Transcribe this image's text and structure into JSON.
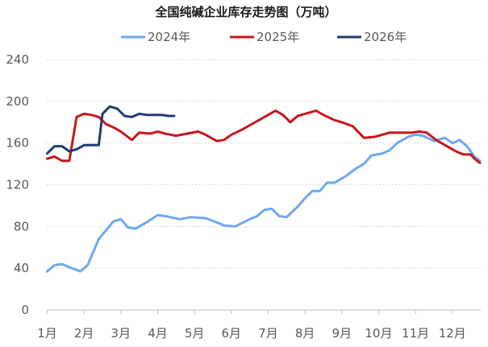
{
  "chart_data": {
    "type": "line",
    "title": "全国纯碱企业库存走势图（万吨）",
    "xlabel": "",
    "ylabel": "",
    "ylim": [
      0,
      240
    ],
    "yticks": [
      0,
      40,
      80,
      120,
      160,
      200,
      240
    ],
    "x_labels": [
      "1月",
      "2月",
      "3月",
      "4月",
      "5月",
      "6月",
      "7月",
      "8月",
      "9月",
      "10月",
      "11月",
      "12月"
    ],
    "x_range": [
      1,
      12.75
    ],
    "grid": "horizontal",
    "legend_position": "top",
    "series": [
      {
        "name": "2024年",
        "color": "#6fa8f0",
        "points": [
          [
            1.0,
            37
          ],
          [
            1.2,
            43
          ],
          [
            1.4,
            44
          ],
          [
            1.6,
            41
          ],
          [
            1.9,
            37
          ],
          [
            2.1,
            43
          ],
          [
            2.4,
            68
          ],
          [
            2.8,
            85
          ],
          [
            3.0,
            87
          ],
          [
            3.2,
            79
          ],
          [
            3.4,
            78
          ],
          [
            3.7,
            84
          ],
          [
            4.0,
            91
          ],
          [
            4.2,
            90
          ],
          [
            4.6,
            87
          ],
          [
            4.9,
            89
          ],
          [
            5.3,
            88
          ],
          [
            5.6,
            84
          ],
          [
            5.8,
            81
          ],
          [
            6.1,
            80
          ],
          [
            6.5,
            87
          ],
          [
            6.7,
            90
          ],
          [
            6.9,
            96
          ],
          [
            7.1,
            97
          ],
          [
            7.3,
            90
          ],
          [
            7.5,
            89
          ],
          [
            7.8,
            99
          ],
          [
            8.0,
            107
          ],
          [
            8.2,
            114
          ],
          [
            8.4,
            114
          ],
          [
            8.6,
            122
          ],
          [
            8.8,
            122
          ],
          [
            9.1,
            128
          ],
          [
            9.4,
            136
          ],
          [
            9.6,
            140
          ],
          [
            9.8,
            148
          ],
          [
            10.1,
            150
          ],
          [
            10.3,
            153
          ],
          [
            10.5,
            160
          ],
          [
            10.8,
            166
          ],
          [
            11.0,
            168
          ],
          [
            11.2,
            167
          ],
          [
            11.5,
            162
          ],
          [
            11.8,
            165
          ],
          [
            12.0,
            160
          ],
          [
            12.2,
            163
          ],
          [
            12.4,
            157
          ],
          [
            12.6,
            147
          ],
          [
            12.75,
            143
          ]
        ]
      },
      {
        "name": "2025年",
        "color": "#c8171a",
        "points": [
          [
            1.0,
            145
          ],
          [
            1.2,
            147
          ],
          [
            1.4,
            143
          ],
          [
            1.6,
            143
          ],
          [
            1.8,
            185
          ],
          [
            2.0,
            188
          ],
          [
            2.2,
            187
          ],
          [
            2.4,
            185
          ],
          [
            2.6,
            178
          ],
          [
            2.8,
            175
          ],
          [
            3.0,
            171
          ],
          [
            3.3,
            163
          ],
          [
            3.5,
            170
          ],
          [
            3.8,
            169
          ],
          [
            4.0,
            171
          ],
          [
            4.2,
            169
          ],
          [
            4.5,
            167
          ],
          [
            4.8,
            169
          ],
          [
            5.1,
            171
          ],
          [
            5.3,
            168
          ],
          [
            5.6,
            162
          ],
          [
            5.8,
            163
          ],
          [
            6.0,
            168
          ],
          [
            6.3,
            173
          ],
          [
            6.6,
            179
          ],
          [
            6.8,
            183
          ],
          [
            7.0,
            187
          ],
          [
            7.2,
            191
          ],
          [
            7.4,
            187
          ],
          [
            7.6,
            180
          ],
          [
            7.8,
            186
          ],
          [
            8.0,
            188
          ],
          [
            8.3,
            191
          ],
          [
            8.5,
            187
          ],
          [
            8.8,
            182
          ],
          [
            9.0,
            180
          ],
          [
            9.3,
            176
          ],
          [
            9.6,
            165
          ],
          [
            9.9,
            166
          ],
          [
            10.1,
            168
          ],
          [
            10.3,
            170
          ],
          [
            10.6,
            170
          ],
          [
            10.9,
            170
          ],
          [
            11.1,
            171
          ],
          [
            11.3,
            170
          ],
          [
            11.6,
            162
          ],
          [
            11.9,
            156
          ],
          [
            12.1,
            152
          ],
          [
            12.3,
            149
          ],
          [
            12.5,
            149
          ],
          [
            12.6,
            145
          ],
          [
            12.75,
            141
          ]
        ]
      },
      {
        "name": "2026年",
        "color": "#1f3b78",
        "points": [
          [
            1.0,
            150
          ],
          [
            1.2,
            157
          ],
          [
            1.4,
            157
          ],
          [
            1.6,
            152
          ],
          [
            1.8,
            154
          ],
          [
            2.0,
            158
          ],
          [
            2.2,
            158
          ],
          [
            2.4,
            158
          ],
          [
            2.5,
            188
          ],
          [
            2.7,
            195
          ],
          [
            2.9,
            193
          ],
          [
            3.1,
            186
          ],
          [
            3.3,
            185
          ],
          [
            3.5,
            188
          ],
          [
            3.7,
            187
          ],
          [
            3.9,
            187
          ],
          [
            4.1,
            187
          ],
          [
            4.3,
            186
          ],
          [
            4.45,
            186
          ]
        ]
      }
    ]
  }
}
